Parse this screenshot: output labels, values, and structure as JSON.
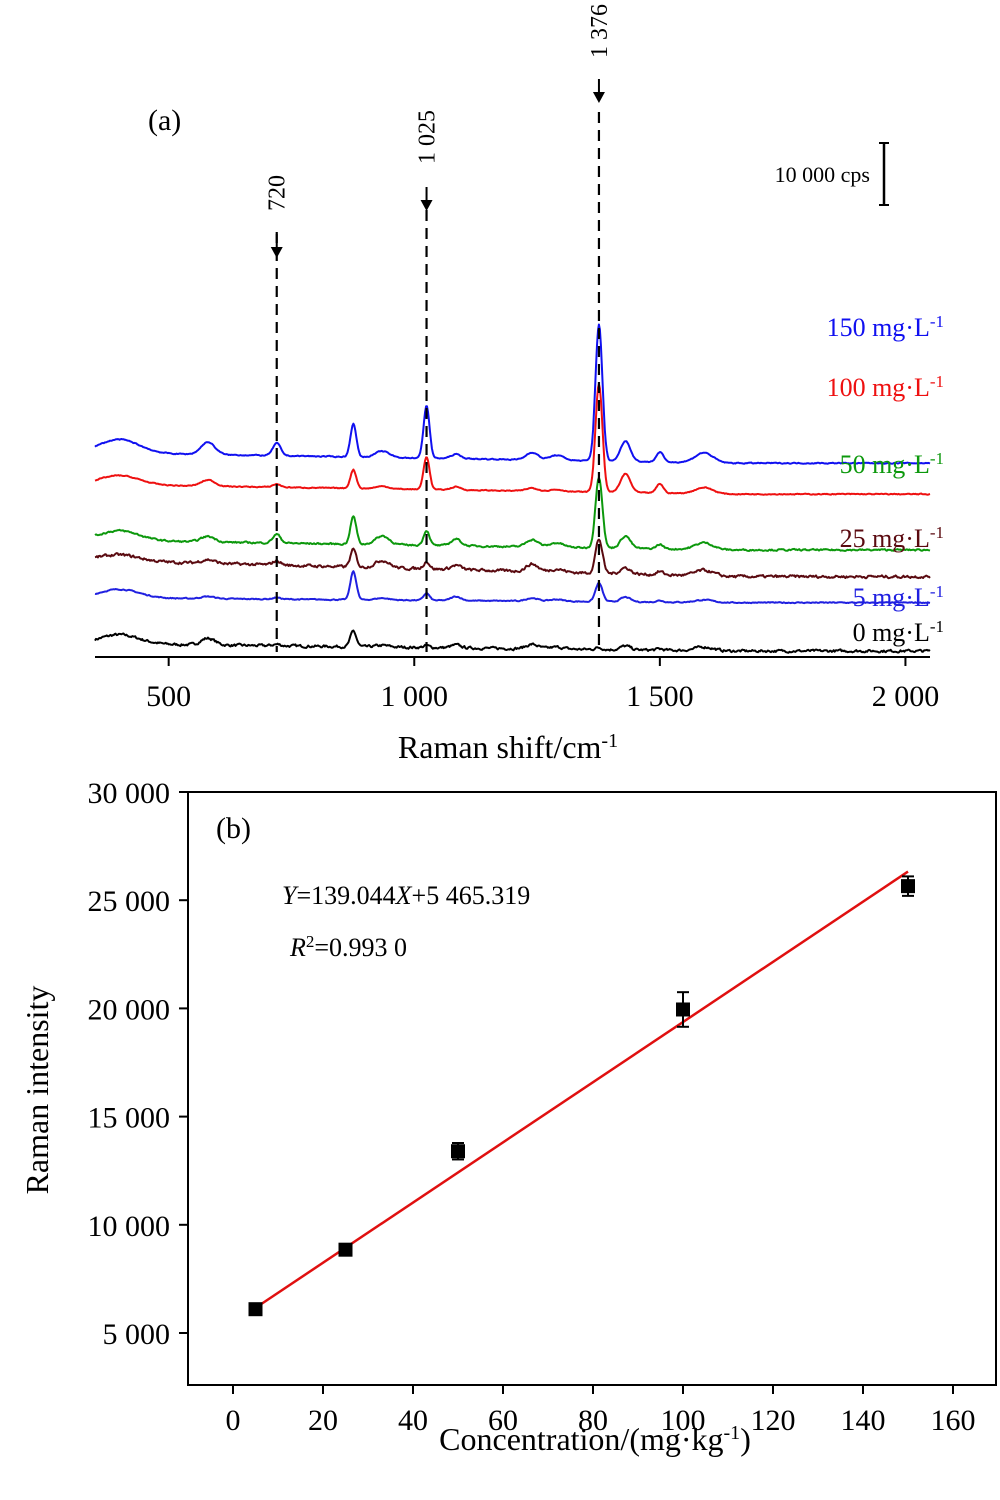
{
  "chart_data": [
    {
      "type": "line",
      "panel_label": "(a)",
      "xlabel": "Raman shift/cm",
      "xlabel_sup": "-1",
      "xlim": [
        350,
        2050
      ],
      "x_ticks": [
        500,
        1000,
        1500,
        2000
      ],
      "x_tick_labels": [
        "500",
        "1 000",
        "1 500",
        "2 000"
      ],
      "scale_bar": "10 000 cps",
      "scale_bar_value": 10000,
      "peak_markers": [
        {
          "x": 720,
          "label": "720"
        },
        {
          "x": 1025,
          "label": "1 025"
        },
        {
          "x": 1376,
          "label": "1 376"
        }
      ],
      "peak_positions": [
        400,
        580,
        720,
        876,
        935,
        1025,
        1085,
        1240,
        1290,
        1376,
        1430,
        1500,
        1590
      ],
      "series": [
        {
          "name": "0 mg·L⁻¹",
          "label": "0 mg·L",
          "label_sup": "-1",
          "color": "#000000",
          "offset": 0,
          "peak_heights": [
            1500,
            1100,
            250,
            2500,
            250,
            300,
            450,
            700,
            300,
            300,
            600,
            200,
            600
          ],
          "slope": 0.9,
          "noise": 350
        },
        {
          "name": "5 mg·L⁻¹",
          "label": "5 mg·L",
          "label_sup": "-1",
          "color": "#2020e0",
          "offset": 7800,
          "peak_heights": [
            1400,
            350,
            250,
            4600,
            300,
            1150,
            650,
            500,
            300,
            3000,
            750,
            250,
            400
          ],
          "slope": 0.6,
          "noise": 140
        },
        {
          "name": "25 mg·L⁻¹",
          "label": "25 mg·L",
          "label_sup": "-1",
          "color": "#5a0a10",
          "offset": 12000,
          "peak_heights": [
            1000,
            600,
            700,
            2800,
            1200,
            1200,
            700,
            1200,
            500,
            5500,
            1000,
            500,
            900
          ],
          "slope": 2.0,
          "noise": 380
        },
        {
          "name": "50 mg·L⁻¹",
          "label": "50 mg·L",
          "label_sup": "-1",
          "color": "#0c980c",
          "offset": 16300,
          "peak_heights": [
            1600,
            900,
            1400,
            4500,
            1400,
            2400,
            1100,
            1200,
            700,
            11500,
            2000,
            700,
            1100
          ],
          "slope": 1.2,
          "noise": 230
        },
        {
          "name": "100 mg·L⁻¹",
          "label": "100 mg·L",
          "label_sup": "-1",
          "color": "#ee1010",
          "offset": 25300,
          "peak_heights": [
            1500,
            1000,
            500,
            3000,
            400,
            5300,
            500,
            500,
            300,
            17500,
            3000,
            1500,
            1000
          ],
          "slope": 1.2,
          "noise": 130
        },
        {
          "name": "150 mg·L⁻¹",
          "label": "150 mg·L",
          "label_sup": "-1",
          "color": "#1010f0",
          "offset": 30300,
          "peak_heights": [
            2200,
            2000,
            2000,
            5300,
            1000,
            8500,
            700,
            1200,
            800,
            22000,
            3300,
            1600,
            1600
          ],
          "slope": 1.3,
          "noise": 140
        }
      ]
    },
    {
      "type": "scatter",
      "panel_label": "(b)",
      "xlabel": "Concentration/(mg·kg",
      "xlabel_sup": "-1",
      "xlabel_close": ")",
      "ylabel": "Raman intensity",
      "xlim": [
        -12,
        170
      ],
      "ylim": [
        2400,
        30000
      ],
      "x_ticks": [
        0,
        20,
        40,
        60,
        80,
        100,
        120,
        140,
        160
      ],
      "x_tick_labels": [
        "0",
        "20",
        "40",
        "60",
        "80",
        "100",
        "120",
        "140",
        "160"
      ],
      "y_ticks": [
        5000,
        10000,
        15000,
        20000,
        25000,
        30000
      ],
      "y_tick_labels": [
        "5 000",
        "10 000",
        "15 000",
        "20 000",
        "25 000",
        "30 000"
      ],
      "points": [
        {
          "x": 5,
          "y": 6100,
          "err": 150
        },
        {
          "x": 25,
          "y": 8850,
          "err": 130
        },
        {
          "x": 50,
          "y": 13400,
          "err": 380
        },
        {
          "x": 100,
          "y": 19950,
          "err": 800
        },
        {
          "x": 150,
          "y": 25650,
          "err": 450
        }
      ],
      "fit": {
        "slope": 139.044,
        "intercept": 5465.319,
        "x_range": [
          5,
          150
        ],
        "color": "#e01010"
      },
      "equation": {
        "y_var": "Y",
        "eq_body": "=139.044",
        "x_var": "X",
        "eq_tail": "+5 465.319"
      },
      "r_squared": {
        "r_var": "R",
        "r_sup": "2",
        "r_value": "=0.993 0"
      }
    }
  ]
}
